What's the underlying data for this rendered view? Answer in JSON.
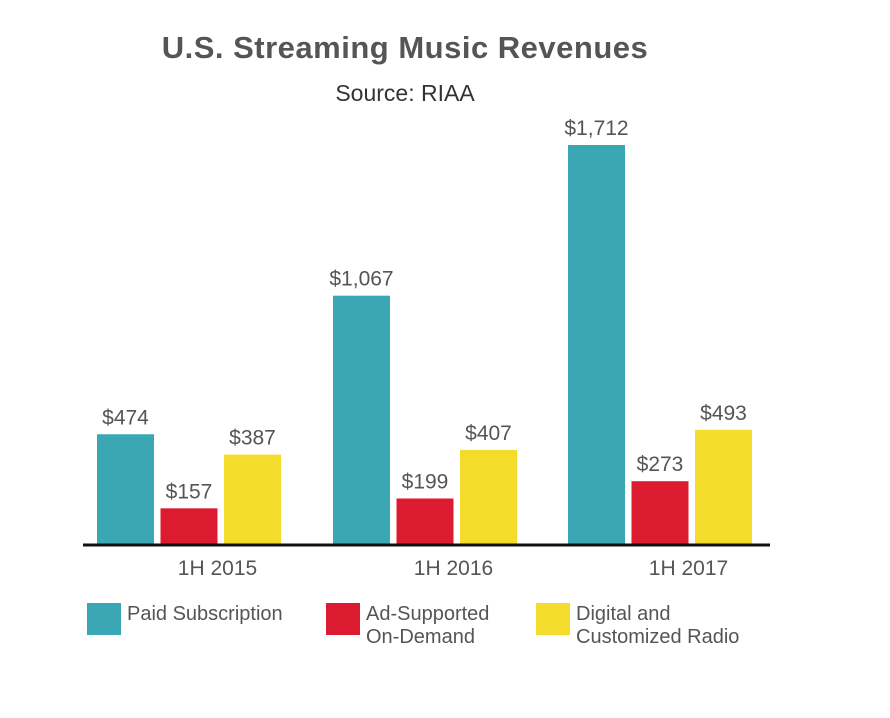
{
  "chart_data": {
    "type": "bar",
    "title": "U.S. Streaming Music Revenues",
    "subtitle": "Source: RIAA",
    "categories": [
      "1H 2015",
      "1H 2016",
      "1H 2017"
    ],
    "series": [
      {
        "name": "Paid Subscription",
        "color": "#3ba7b5",
        "values": [
          474,
          1067,
          1712
        ],
        "labels": [
          "$474",
          "$1,067",
          "$1,712"
        ]
      },
      {
        "name": "Ad-Supported\nOn-Demand",
        "color": "#dc1a30",
        "values": [
          157,
          199,
          273
        ],
        "labels": [
          "$157",
          "$199",
          "$273"
        ]
      },
      {
        "name": "Digital and\nCustomized Radio",
        "color": "#f4dc2c",
        "values": [
          387,
          407,
          493
        ],
        "labels": [
          "$387",
          "$407",
          "$493"
        ]
      }
    ],
    "ylim": [
      0,
      1712
    ],
    "grid": false,
    "legend_position": "bottom"
  }
}
